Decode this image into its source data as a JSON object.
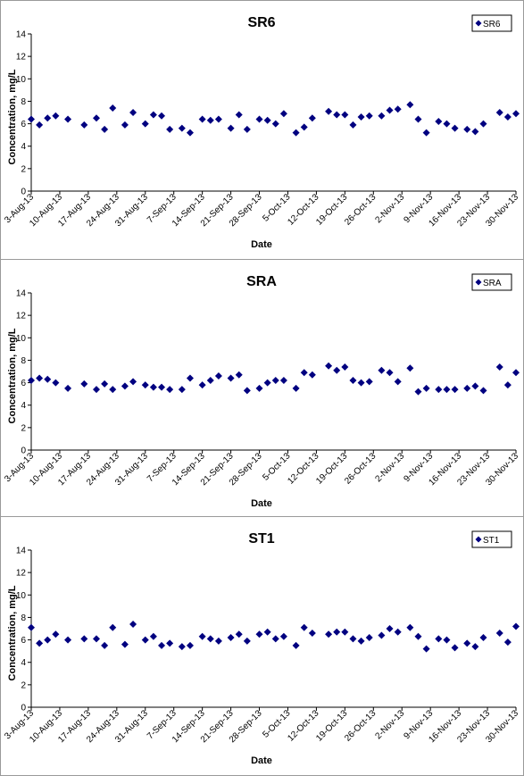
{
  "chart_data": [
    {
      "type": "scatter",
      "title": "SR6",
      "xlabel": "Date",
      "ylabel": "Concentration, mg/L",
      "ylim": [
        0,
        14
      ],
      "yticks": [
        0,
        2,
        4,
        6,
        8,
        10,
        12,
        14
      ],
      "xlim": [
        "2013-08-03",
        "2013-11-30"
      ],
      "xticks": [
        "3-Aug-13",
        "10-Aug-13",
        "17-Aug-13",
        "24-Aug-13",
        "31-Aug-13",
        "7-Sep-13",
        "14-Sep-13",
        "21-Sep-13",
        "28-Sep-13",
        "5-Oct-13",
        "12-Oct-13",
        "19-Oct-13",
        "26-Oct-13",
        "2-Nov-13",
        "9-Nov-13",
        "16-Nov-13",
        "23-Nov-13",
        "30-Nov-13"
      ],
      "grid": false,
      "legend_position": "top-right",
      "marker_color": "#000080",
      "series": [
        {
          "name": "SR6",
          "points": [
            [
              "2013-08-03",
              6.4
            ],
            [
              "2013-08-05",
              5.9
            ],
            [
              "2013-08-07",
              6.5
            ],
            [
              "2013-08-09",
              6.7
            ],
            [
              "2013-08-12",
              6.4
            ],
            [
              "2013-08-16",
              5.9
            ],
            [
              "2013-08-19",
              6.5
            ],
            [
              "2013-08-21",
              5.5
            ],
            [
              "2013-08-23",
              7.4
            ],
            [
              "2013-08-26",
              5.9
            ],
            [
              "2013-08-28",
              7.0
            ],
            [
              "2013-08-31",
              6.0
            ],
            [
              "2013-09-02",
              6.8
            ],
            [
              "2013-09-04",
              6.7
            ],
            [
              "2013-09-06",
              5.5
            ],
            [
              "2013-09-09",
              5.6
            ],
            [
              "2013-09-11",
              5.2
            ],
            [
              "2013-09-14",
              6.4
            ],
            [
              "2013-09-16",
              6.3
            ],
            [
              "2013-09-18",
              6.4
            ],
            [
              "2013-09-21",
              5.6
            ],
            [
              "2013-09-23",
              6.8
            ],
            [
              "2013-09-25",
              5.5
            ],
            [
              "2013-09-28",
              6.4
            ],
            [
              "2013-09-30",
              6.3
            ],
            [
              "2013-10-02",
              6.0
            ],
            [
              "2013-10-04",
              6.9
            ],
            [
              "2013-10-07",
              5.2
            ],
            [
              "2013-10-09",
              5.7
            ],
            [
              "2013-10-11",
              6.5
            ],
            [
              "2013-10-15",
              7.1
            ],
            [
              "2013-10-17",
              6.8
            ],
            [
              "2013-10-19",
              6.8
            ],
            [
              "2013-10-21",
              5.9
            ],
            [
              "2013-10-23",
              6.6
            ],
            [
              "2013-10-25",
              6.7
            ],
            [
              "2013-10-28",
              6.7
            ],
            [
              "2013-10-30",
              7.2
            ],
            [
              "2013-11-01",
              7.3
            ],
            [
              "2013-11-04",
              7.7
            ],
            [
              "2013-11-06",
              6.4
            ],
            [
              "2013-11-08",
              5.2
            ],
            [
              "2013-11-11",
              6.2
            ],
            [
              "2013-11-13",
              6.0
            ],
            [
              "2013-11-15",
              5.6
            ],
            [
              "2013-11-18",
              5.5
            ],
            [
              "2013-11-20",
              5.3
            ],
            [
              "2013-11-22",
              6.0
            ],
            [
              "2013-11-26",
              7.0
            ],
            [
              "2013-11-28",
              6.6
            ],
            [
              "2013-11-30",
              6.9
            ]
          ]
        }
      ]
    },
    {
      "type": "scatter",
      "title": "SRA",
      "xlabel": "Date",
      "ylabel": "Concentration, mg/L",
      "ylim": [
        0,
        14
      ],
      "yticks": [
        0,
        2,
        4,
        6,
        8,
        10,
        12,
        14
      ],
      "xlim": [
        "2013-08-03",
        "2013-11-30"
      ],
      "xticks": [
        "3-Aug-13",
        "10-Aug-13",
        "17-Aug-13",
        "24-Aug-13",
        "31-Aug-13",
        "7-Sep-13",
        "14-Sep-13",
        "21-Sep-13",
        "28-Sep-13",
        "5-Oct-13",
        "12-Oct-13",
        "19-Oct-13",
        "26-Oct-13",
        "2-Nov-13",
        "9-Nov-13",
        "16-Nov-13",
        "23-Nov-13",
        "30-Nov-13"
      ],
      "grid": false,
      "legend_position": "top-right",
      "marker_color": "#000080",
      "series": [
        {
          "name": "SRA",
          "points": [
            [
              "2013-08-03",
              6.2
            ],
            [
              "2013-08-05",
              6.4
            ],
            [
              "2013-08-07",
              6.3
            ],
            [
              "2013-08-09",
              6.0
            ],
            [
              "2013-08-12",
              5.5
            ],
            [
              "2013-08-16",
              5.9
            ],
            [
              "2013-08-19",
              5.4
            ],
            [
              "2013-08-21",
              5.9
            ],
            [
              "2013-08-23",
              5.4
            ],
            [
              "2013-08-26",
              5.7
            ],
            [
              "2013-08-28",
              6.1
            ],
            [
              "2013-08-31",
              5.8
            ],
            [
              "2013-09-02",
              5.6
            ],
            [
              "2013-09-04",
              5.6
            ],
            [
              "2013-09-06",
              5.4
            ],
            [
              "2013-09-09",
              5.4
            ],
            [
              "2013-09-11",
              6.4
            ],
            [
              "2013-09-14",
              5.8
            ],
            [
              "2013-09-16",
              6.2
            ],
            [
              "2013-09-18",
              6.6
            ],
            [
              "2013-09-21",
              6.4
            ],
            [
              "2013-09-23",
              6.7
            ],
            [
              "2013-09-25",
              5.3
            ],
            [
              "2013-09-28",
              5.5
            ],
            [
              "2013-09-30",
              6.0
            ],
            [
              "2013-10-02",
              6.2
            ],
            [
              "2013-10-04",
              6.2
            ],
            [
              "2013-10-07",
              5.5
            ],
            [
              "2013-10-09",
              6.9
            ],
            [
              "2013-10-11",
              6.7
            ],
            [
              "2013-10-15",
              7.5
            ],
            [
              "2013-10-17",
              7.1
            ],
            [
              "2013-10-19",
              7.4
            ],
            [
              "2013-10-21",
              6.2
            ],
            [
              "2013-10-23",
              6.0
            ],
            [
              "2013-10-25",
              6.1
            ],
            [
              "2013-10-28",
              7.1
            ],
            [
              "2013-10-30",
              6.9
            ],
            [
              "2013-11-01",
              6.1
            ],
            [
              "2013-11-04",
              7.3
            ],
            [
              "2013-11-06",
              5.2
            ],
            [
              "2013-11-08",
              5.5
            ],
            [
              "2013-11-11",
              5.4
            ],
            [
              "2013-11-13",
              5.4
            ],
            [
              "2013-11-15",
              5.4
            ],
            [
              "2013-11-18",
              5.5
            ],
            [
              "2013-11-20",
              5.7
            ],
            [
              "2013-11-22",
              5.3
            ],
            [
              "2013-11-26",
              7.4
            ],
            [
              "2013-11-28",
              5.8
            ],
            [
              "2013-11-30",
              6.9
            ]
          ]
        }
      ]
    },
    {
      "type": "scatter",
      "title": "ST1",
      "xlabel": "Date",
      "ylabel": "Concentration, mg/L",
      "ylim": [
        0,
        14
      ],
      "yticks": [
        0,
        2,
        4,
        6,
        8,
        10,
        12,
        14
      ],
      "xlim": [
        "2013-08-03",
        "2013-11-30"
      ],
      "xticks": [
        "3-Aug-13",
        "10-Aug-13",
        "17-Aug-13",
        "24-Aug-13",
        "31-Aug-13",
        "7-Sep-13",
        "14-Sep-13",
        "21-Sep-13",
        "28-Sep-13",
        "5-Oct-13",
        "12-Oct-13",
        "19-Oct-13",
        "26-Oct-13",
        "2-Nov-13",
        "9-Nov-13",
        "16-Nov-13",
        "23-Nov-13",
        "30-Nov-13"
      ],
      "grid": false,
      "legend_position": "top-right",
      "marker_color": "#000080",
      "series": [
        {
          "name": "ST1",
          "points": [
            [
              "2013-08-03",
              7.1
            ],
            [
              "2013-08-05",
              5.7
            ],
            [
              "2013-08-07",
              6.0
            ],
            [
              "2013-08-09",
              6.5
            ],
            [
              "2013-08-12",
              6.0
            ],
            [
              "2013-08-16",
              6.1
            ],
            [
              "2013-08-19",
              6.1
            ],
            [
              "2013-08-21",
              5.5
            ],
            [
              "2013-08-23",
              7.1
            ],
            [
              "2013-08-26",
              5.6
            ],
            [
              "2013-08-28",
              7.4
            ],
            [
              "2013-08-31",
              6.0
            ],
            [
              "2013-09-02",
              6.3
            ],
            [
              "2013-09-04",
              5.5
            ],
            [
              "2013-09-06",
              5.7
            ],
            [
              "2013-09-09",
              5.4
            ],
            [
              "2013-09-11",
              5.5
            ],
            [
              "2013-09-14",
              6.3
            ],
            [
              "2013-09-16",
              6.1
            ],
            [
              "2013-09-18",
              5.9
            ],
            [
              "2013-09-21",
              6.2
            ],
            [
              "2013-09-23",
              6.5
            ],
            [
              "2013-09-25",
              5.9
            ],
            [
              "2013-09-28",
              6.5
            ],
            [
              "2013-09-30",
              6.7
            ],
            [
              "2013-10-02",
              6.1
            ],
            [
              "2013-10-04",
              6.3
            ],
            [
              "2013-10-07",
              5.5
            ],
            [
              "2013-10-09",
              7.1
            ],
            [
              "2013-10-11",
              6.6
            ],
            [
              "2013-10-15",
              6.5
            ],
            [
              "2013-10-17",
              6.7
            ],
            [
              "2013-10-19",
              6.7
            ],
            [
              "2013-10-21",
              6.1
            ],
            [
              "2013-10-23",
              5.9
            ],
            [
              "2013-10-25",
              6.2
            ],
            [
              "2013-10-28",
              6.4
            ],
            [
              "2013-10-30",
              7.0
            ],
            [
              "2013-11-01",
              6.7
            ],
            [
              "2013-11-04",
              7.1
            ],
            [
              "2013-11-06",
              6.3
            ],
            [
              "2013-11-08",
              5.2
            ],
            [
              "2013-11-11",
              6.1
            ],
            [
              "2013-11-13",
              6.0
            ],
            [
              "2013-11-15",
              5.3
            ],
            [
              "2013-11-18",
              5.7
            ],
            [
              "2013-11-20",
              5.4
            ],
            [
              "2013-11-22",
              6.2
            ],
            [
              "2013-11-26",
              6.6
            ],
            [
              "2013-11-28",
              5.8
            ],
            [
              "2013-11-30",
              7.2
            ]
          ]
        }
      ]
    }
  ]
}
